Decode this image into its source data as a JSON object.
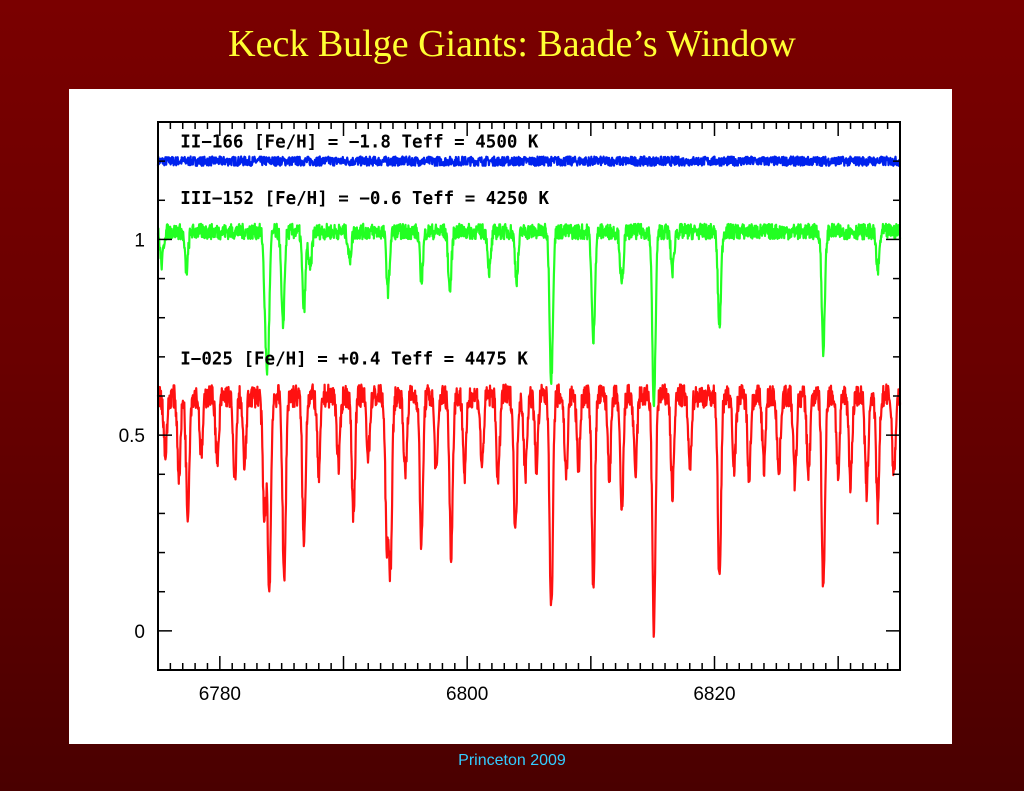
{
  "slide": {
    "title": "Keck Bulge Giants: Baade’s Window",
    "footer": "Princeton 2009"
  },
  "chart_data": {
    "type": "line",
    "title": "",
    "xlabel": "",
    "ylabel": "",
    "xlim": [
      6775,
      6835
    ],
    "ylim": [
      -0.1,
      1.3
    ],
    "xticks": [
      6780,
      6800,
      6820
    ],
    "yticks": [
      0,
      0.5,
      1
    ],
    "grid": false,
    "legend": "none",
    "noise_seed": 7,
    "series": [
      {
        "name": "II−166 [Fe/H] = −1.8 Teff = 4500 K",
        "color": "#0022ee",
        "continuum": 1.2,
        "noise": 0.012,
        "lines": []
      },
      {
        "name": "III−152 [Fe/H] = −0.6 Teff = 4250 K",
        "color": "#22ff22",
        "continuum": 1.02,
        "noise": 0.02,
        "lines": [
          [
            6775.3,
            0.08
          ],
          [
            6777.3,
            0.1
          ],
          [
            6783.7,
            0.2
          ],
          [
            6783.9,
            0.27
          ],
          [
            6785.1,
            0.24
          ],
          [
            6786.8,
            0.2
          ],
          [
            6787.3,
            0.1
          ],
          [
            6790.5,
            0.07
          ],
          [
            6793.6,
            0.15
          ],
          [
            6796.3,
            0.12
          ],
          [
            6798.6,
            0.15
          ],
          [
            6801.8,
            0.1
          ],
          [
            6804.0,
            0.12
          ],
          [
            6806.8,
            0.38
          ],
          [
            6810.2,
            0.28
          ],
          [
            6812.5,
            0.14
          ],
          [
            6815.1,
            0.45
          ],
          [
            6816.6,
            0.1
          ],
          [
            6820.4,
            0.24
          ],
          [
            6828.8,
            0.3
          ],
          [
            6833.2,
            0.1
          ]
        ]
      },
      {
        "name": "I−025 [Fe/H] = +0.4 Teff = 4475 K",
        "color": "#ff1111",
        "continuum": 0.6,
        "noise": 0.03,
        "lines": [
          [
            6775.6,
            0.15
          ],
          [
            6776.7,
            0.2
          ],
          [
            6777.4,
            0.3
          ],
          [
            6778.5,
            0.15
          ],
          [
            6779.8,
            0.18
          ],
          [
            6781.2,
            0.22
          ],
          [
            6782.0,
            0.18
          ],
          [
            6783.6,
            0.32
          ],
          [
            6784.0,
            0.5
          ],
          [
            6785.2,
            0.48
          ],
          [
            6786.8,
            0.38
          ],
          [
            6788.0,
            0.2
          ],
          [
            6789.6,
            0.18
          ],
          [
            6790.8,
            0.3
          ],
          [
            6792.0,
            0.15
          ],
          [
            6793.5,
            0.35
          ],
          [
            6793.8,
            0.42
          ],
          [
            6795.0,
            0.2
          ],
          [
            6796.3,
            0.38
          ],
          [
            6797.5,
            0.2
          ],
          [
            6798.7,
            0.4
          ],
          [
            6799.8,
            0.2
          ],
          [
            6801.2,
            0.18
          ],
          [
            6802.5,
            0.22
          ],
          [
            6803.9,
            0.35
          ],
          [
            6804.7,
            0.2
          ],
          [
            6805.6,
            0.18
          ],
          [
            6806.8,
            0.55
          ],
          [
            6808.0,
            0.2
          ],
          [
            6809.0,
            0.18
          ],
          [
            6810.2,
            0.48
          ],
          [
            6811.5,
            0.2
          ],
          [
            6812.5,
            0.3
          ],
          [
            6813.6,
            0.2
          ],
          [
            6815.1,
            0.6
          ],
          [
            6816.6,
            0.25
          ],
          [
            6818.0,
            0.18
          ],
          [
            6820.4,
            0.48
          ],
          [
            6821.6,
            0.18
          ],
          [
            6822.8,
            0.2
          ],
          [
            6824.0,
            0.18
          ],
          [
            6825.2,
            0.2
          ],
          [
            6826.5,
            0.22
          ],
          [
            6827.6,
            0.2
          ],
          [
            6828.8,
            0.5
          ],
          [
            6830.0,
            0.2
          ],
          [
            6831.0,
            0.22
          ],
          [
            6832.3,
            0.25
          ],
          [
            6833.2,
            0.3
          ],
          [
            6834.5,
            0.2
          ]
        ]
      }
    ],
    "annotations": [
      {
        "text": "II−166 [Fe/H] = −1.8 Teff = 4500 K",
        "x": 6776.8,
        "y": 1.235
      },
      {
        "text": "III−152 [Fe/H] = −0.6 Teff = 4250 K",
        "x": 6776.8,
        "y": 1.09
      },
      {
        "text": "I−025 [Fe/H] = +0.4 Teff = 4475 K",
        "x": 6776.8,
        "y": 0.68
      }
    ]
  }
}
